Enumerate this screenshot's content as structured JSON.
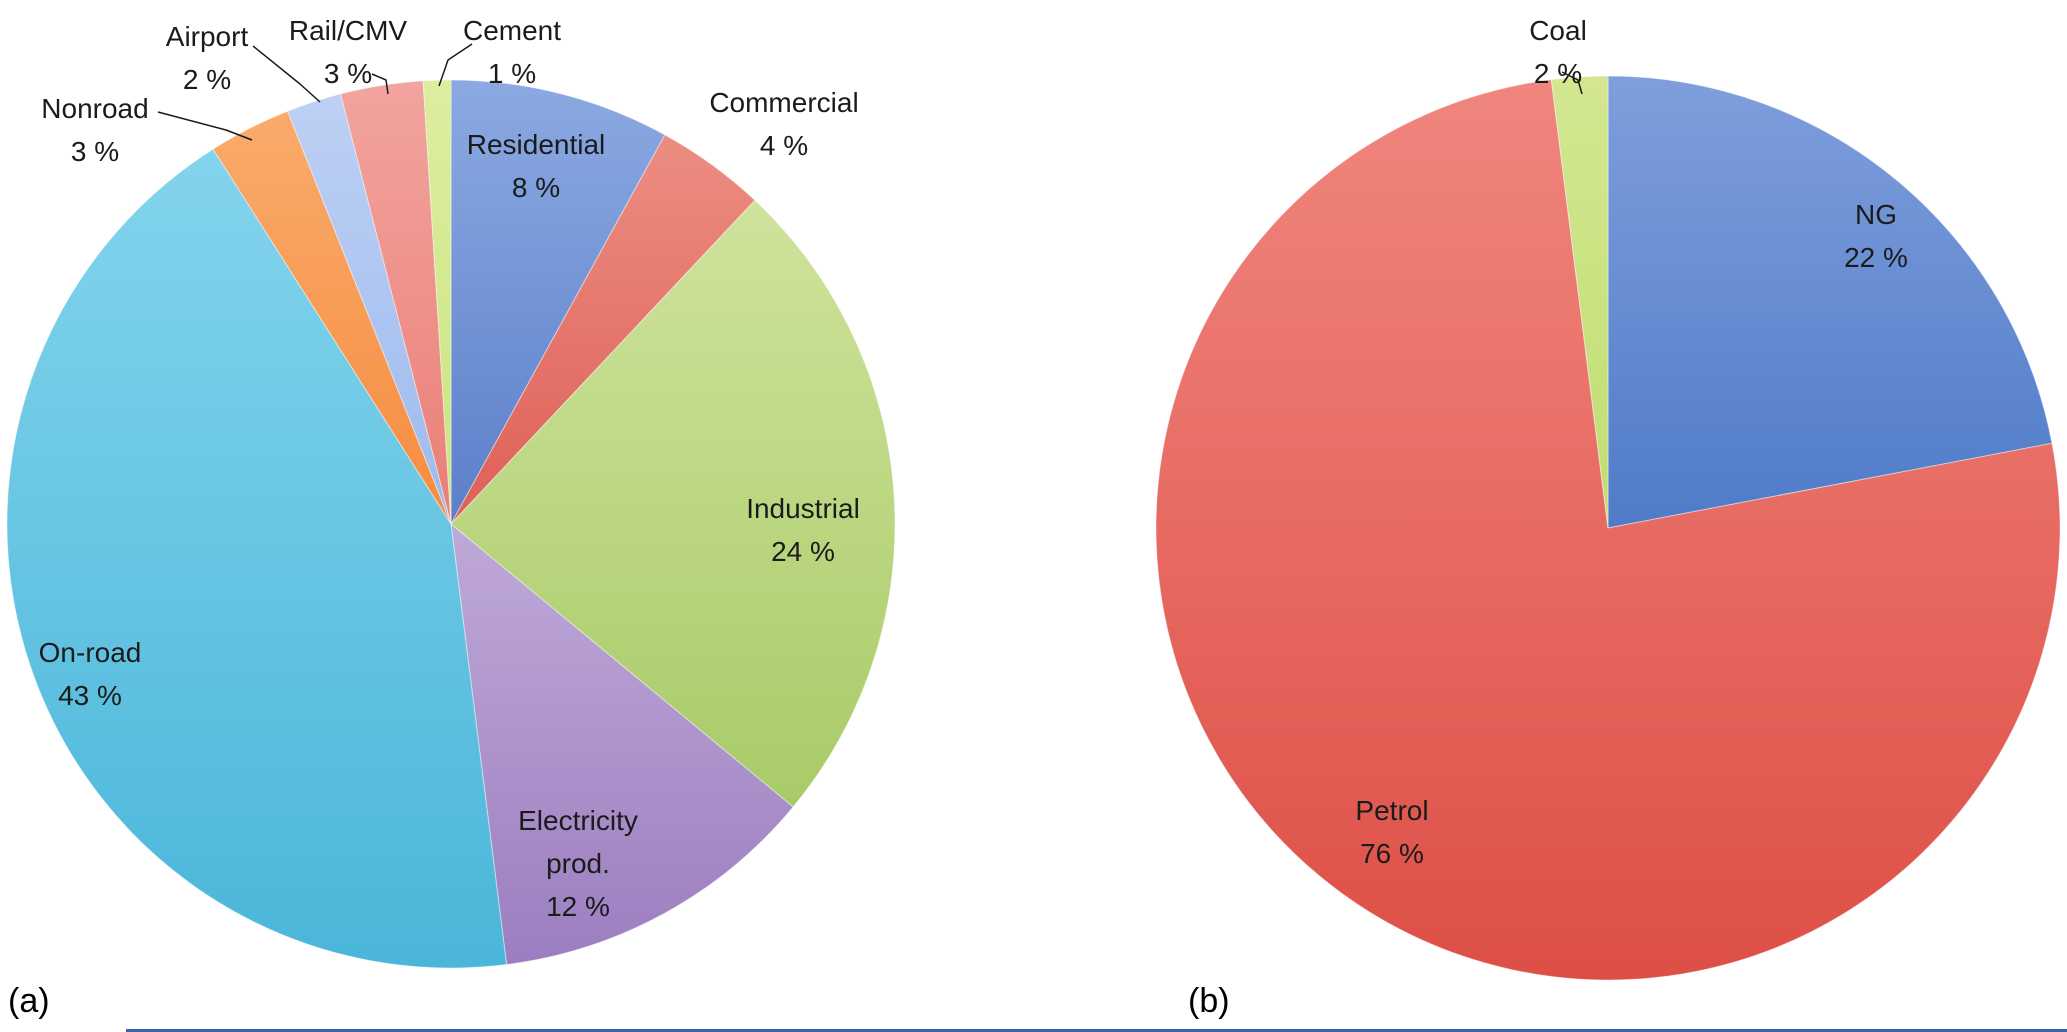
{
  "figure": {
    "captions": [
      "(a)",
      "(b)"
    ],
    "background_color": "#ffffff",
    "bottom_rule_color": "#3a63ae",
    "label_text_color": "#1b1b1b"
  },
  "chart_data": [
    {
      "type": "pie",
      "id": "a",
      "caption": "(a)",
      "title": "",
      "units": "%",
      "start_angle_deg": 0,
      "direction": "clockwise",
      "legend": "none",
      "slices": [
        {
          "name": "Residential",
          "value": 8,
          "label_lines": [
            "Residential",
            "8 %"
          ],
          "color_top": "#8ba9e2",
          "color_bottom": "#5b7fca",
          "label_placement": "inside",
          "leader_line": false
        },
        {
          "name": "Commercial",
          "value": 4,
          "label_lines": [
            "Commercial",
            "4 %"
          ],
          "color_top": "#ec8d82",
          "color_bottom": "#de6057",
          "label_placement": "outside",
          "leader_line": false
        },
        {
          "name": "Industrial",
          "value": 24,
          "label_lines": [
            "Industrial",
            "24 %"
          ],
          "color_top": "#cfe39c",
          "color_bottom": "#a8cb68",
          "label_placement": "inside",
          "leader_line": false
        },
        {
          "name": "Electricity prod.",
          "value": 12,
          "label_lines": [
            "Electricity",
            "prod.",
            "12 %"
          ],
          "color_top": "#bfa9d8",
          "color_bottom": "#9b7ec0",
          "label_placement": "inside",
          "leader_line": false
        },
        {
          "name": "On-road",
          "value": 43,
          "label_lines": [
            "On-road",
            "43 %"
          ],
          "color_top": "#83d4ec",
          "color_bottom": "#4ab6d9",
          "label_placement": "inside",
          "leader_line": false
        },
        {
          "name": "Nonroad",
          "value": 3,
          "label_lines": [
            "Nonroad",
            "3 %"
          ],
          "color_top": "#f9ab6c",
          "color_bottom": "#f68c3f",
          "label_placement": "outside",
          "leader_line": true
        },
        {
          "name": "Airport",
          "value": 2,
          "label_lines": [
            "Airport",
            "2 %"
          ],
          "color_top": "#bdd0f4",
          "color_bottom": "#9dbaee",
          "label_placement": "outside",
          "leader_line": true
        },
        {
          "name": "Rail/CMV",
          "value": 3,
          "label_lines": [
            "Rail/CMV",
            "3 %"
          ],
          "color_top": "#f2a49e",
          "color_bottom": "#ea7e76",
          "label_placement": "outside",
          "leader_line": true
        },
        {
          "name": "Cement",
          "value": 1,
          "label_lines": [
            "Cement",
            "1 %"
          ],
          "color_top": "#dcee9f",
          "color_bottom": "#cbe47f",
          "label_placement": "outside",
          "leader_line": true
        }
      ]
    },
    {
      "type": "pie",
      "id": "b",
      "caption": "(b)",
      "title": "",
      "units": "%",
      "start_angle_deg": 0,
      "direction": "clockwise",
      "legend": "none",
      "slices": [
        {
          "name": "NG",
          "value": 22,
          "label_lines": [
            "NG",
            "22 %"
          ],
          "color_top": "#7f9edc",
          "color_bottom": "#4f7bc8",
          "label_placement": "inside",
          "leader_line": false
        },
        {
          "name": "Petrol",
          "value": 76,
          "label_lines": [
            "Petrol",
            "76 %"
          ],
          "color_top": "#f0867e",
          "color_bottom": "#dd4f46",
          "label_placement": "inside",
          "leader_line": false
        },
        {
          "name": "Coal",
          "value": 2,
          "label_lines": [
            "Coal",
            "2 %"
          ],
          "color_top": "#d2e78f",
          "color_bottom": "#c0de72",
          "label_placement": "outside",
          "leader_line": true
        }
      ]
    }
  ]
}
